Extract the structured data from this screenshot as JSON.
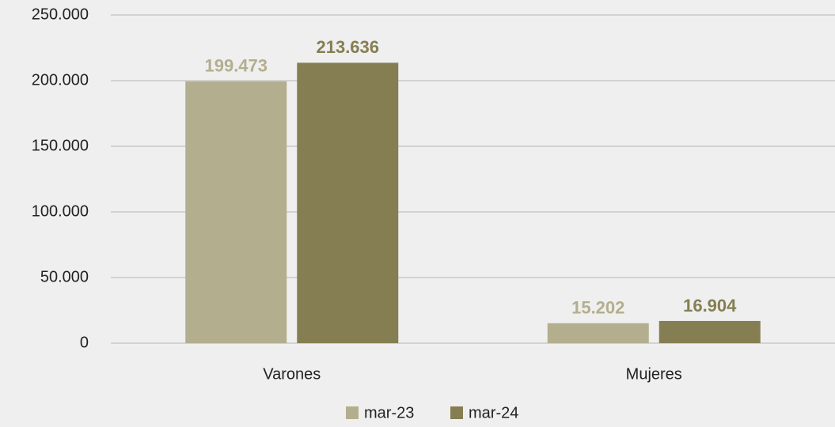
{
  "chart_data": {
    "type": "bar",
    "categories": [
      "Varones",
      "Mujeres"
    ],
    "series": [
      {
        "name": "mar-23",
        "color": "#b3ae8d",
        "values": [
          199473,
          15202
        ],
        "value_labels": [
          "199.473",
          "15.202"
        ]
      },
      {
        "name": "mar-24",
        "color": "#857e52",
        "values": [
          213636,
          16904
        ],
        "value_labels": [
          "213.636",
          "16.904"
        ]
      }
    ],
    "ylim": [
      0,
      250000
    ],
    "yticks": [
      0,
      {
        "value": 50000,
        "label": "50.000"
      },
      {
        "value": 100000,
        "label": "100.000"
      },
      {
        "value": 150000,
        "label": "150.000"
      },
      {
        "value": 200000,
        "label": "200.000"
      },
      {
        "value": 250000,
        "label": "250.000"
      }
    ],
    "grid": true,
    "legend": "bottom"
  }
}
